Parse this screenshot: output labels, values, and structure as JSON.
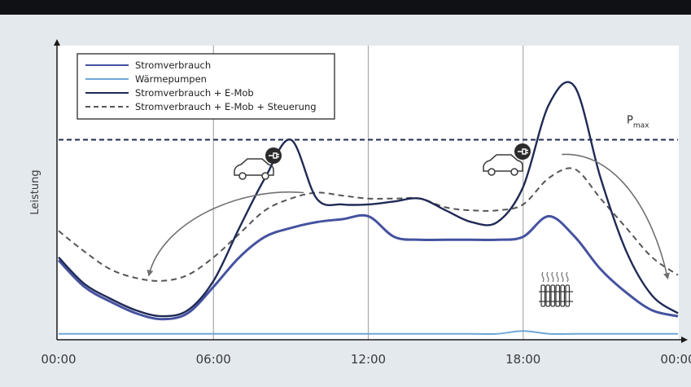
{
  "chart_data": {
    "type": "line",
    "title": "",
    "xlabel": "",
    "ylabel": "Leistung",
    "x_ticks": [
      "00:00",
      "06:00",
      "12:00",
      "18:00",
      "00:00"
    ],
    "x_hours": [
      0,
      6,
      12,
      18,
      24
    ],
    "xlim": [
      0,
      24
    ],
    "ylim": [
      0,
      100
    ],
    "y_unit": "relative",
    "grid": "vertical lines at 06:00, 12:00, 18:00",
    "legend_position": "top-left",
    "x": [
      0,
      1,
      2,
      3,
      4,
      5,
      6,
      7,
      8,
      9,
      10,
      11,
      12,
      13,
      14,
      15,
      16,
      17,
      18,
      19,
      20,
      21,
      22,
      23,
      24
    ],
    "series": [
      {
        "name": "Stromverbrauch",
        "color": "#4552a0",
        "style": "solid",
        "values": [
          27,
          18,
          13,
          9,
          7,
          9,
          18,
          28,
          35,
          38,
          40,
          41,
          42,
          35,
          34,
          34,
          34,
          34,
          35,
          42,
          35,
          24,
          16,
          10,
          8
        ]
      },
      {
        "name": "Wärmepumpen",
        "color": "#6fa6d8",
        "style": "solid",
        "values": [
          2,
          2,
          2,
          2,
          2,
          2,
          2,
          2,
          2,
          2,
          2,
          2,
          2,
          2,
          2,
          2,
          2,
          2,
          3,
          2,
          2,
          2,
          2,
          2,
          2
        ]
      },
      {
        "name": "Stromverbrauch + E-Mob",
        "color": "#1f2a55",
        "style": "solid",
        "values": [
          28,
          19,
          14,
          10,
          8,
          10,
          20,
          38,
          55,
          68,
          48,
          46,
          46,
          47,
          48,
          44,
          40,
          40,
          52,
          80,
          86,
          55,
          30,
          15,
          9
        ]
      },
      {
        "name": "Stromverbrauch + E-Mob + Steuerung",
        "color": "#555555",
        "style": "dashed",
        "values": [
          37,
          30,
          24,
          21,
          20,
          22,
          28,
          36,
          44,
          48,
          50,
          49,
          48,
          48,
          48,
          45,
          44,
          44,
          46,
          55,
          58,
          48,
          38,
          28,
          22
        ]
      }
    ],
    "reference_line": {
      "label": "P",
      "subscript": "max",
      "value": 68,
      "style": "dashed",
      "color": "#1f2a55"
    },
    "annotations": [
      {
        "type": "icon",
        "name": "e-car-icon",
        "hour": 9
      },
      {
        "type": "icon",
        "name": "e-car-icon",
        "hour": 19
      },
      {
        "type": "icon",
        "name": "radiator-icon",
        "hour": 20
      },
      {
        "type": "curved-arrow",
        "from_hour": 9.5,
        "to_hour": 3.5,
        "meaning": "load shifted"
      },
      {
        "type": "curved-arrow",
        "from_hour": 19.5,
        "to_hour": 24,
        "meaning": "load shifted"
      }
    ]
  }
}
